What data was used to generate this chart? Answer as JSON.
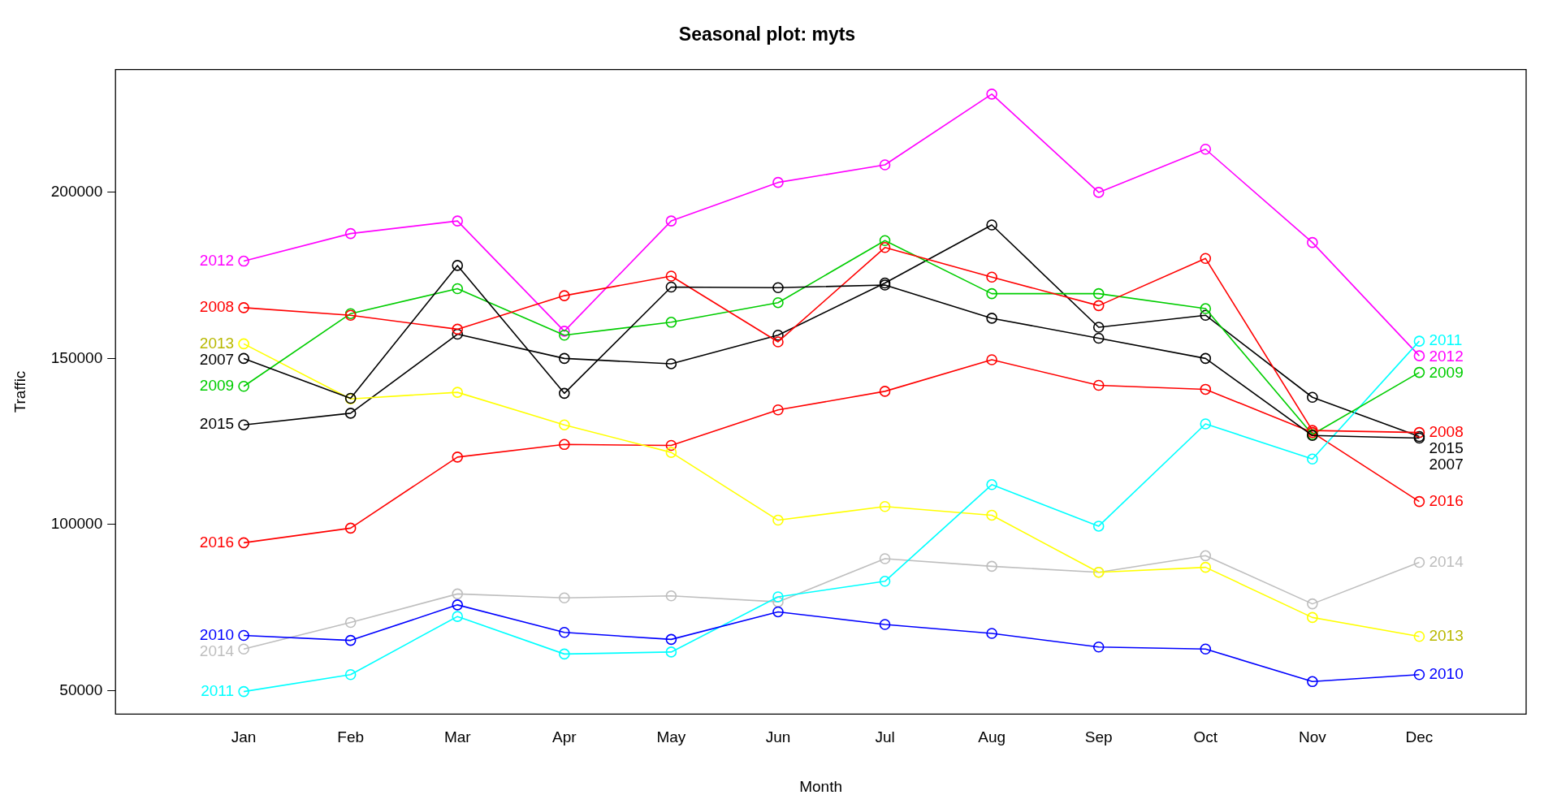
{
  "chart_data": {
    "type": "line",
    "title": "Seasonal plot: myts",
    "xlabel": "Month",
    "ylabel": "Traffic",
    "categories": [
      "Jan",
      "Feb",
      "Mar",
      "Apr",
      "May",
      "Jun",
      "Jul",
      "Aug",
      "Sep",
      "Oct",
      "Nov",
      "Dec"
    ],
    "ylim": [
      42900,
      237000
    ],
    "yticks": [
      50000,
      100000,
      150000,
      200000
    ],
    "grid": false,
    "legend": false,
    "marker": "circle",
    "line_style": "solid",
    "series": [
      {
        "name": "2007",
        "color": "#000000",
        "values": [
          150000,
          138000,
          178000,
          139500,
          171500,
          171300,
          172100,
          162100,
          156100,
          150000,
          126800,
          126000
        ]
      },
      {
        "name": "2008",
        "color": "#ff0000",
        "values": [
          165300,
          163000,
          158800,
          168900,
          174800,
          155000,
          183400,
          174500,
          165900,
          180100,
          128300,
          127700
        ]
      },
      {
        "name": "2009",
        "color": "#00cd00",
        "values": [
          141600,
          163500,
          171000,
          157000,
          160900,
          166800,
          185500,
          169500,
          169500,
          165000,
          127100,
          145800
        ]
      },
      {
        "name": "2010",
        "color": "#0000ff",
        "values": [
          66600,
          65100,
          75800,
          67500,
          65400,
          73700,
          69900,
          67200,
          63100,
          62500,
          52700,
          54800
        ]
      },
      {
        "name": "2011",
        "color": "#00ffff",
        "values": [
          49700,
          54800,
          72300,
          61000,
          61600,
          78200,
          82900,
          112000,
          99500,
          130300,
          119700,
          155200
        ]
      },
      {
        "name": "2012",
        "color": "#ff00ff",
        "values": [
          179300,
          187600,
          191400,
          158200,
          191400,
          203000,
          208300,
          229600,
          200000,
          213000,
          184900,
          150800
        ]
      },
      {
        "name": "2013",
        "color": "#ffff00",
        "values": [
          154400,
          137800,
          139800,
          130000,
          121700,
          101300,
          105400,
          102800,
          85600,
          87100,
          72000,
          66300
        ]
      },
      {
        "name": "2014",
        "color": "#bebebe",
        "values": [
          62500,
          70500,
          79100,
          77900,
          78500,
          76700,
          89700,
          87400,
          85600,
          90600,
          76100,
          88600
        ]
      },
      {
        "name": "2015",
        "color": "#000000",
        "values": [
          130000,
          133500,
          157300,
          150000,
          148400,
          157000,
          172700,
          190200,
          159400,
          163000,
          138300,
          126500
        ]
      },
      {
        "name": "2016",
        "color": "#ff0000",
        "values": [
          94500,
          98900,
          120300,
          124100,
          123800,
          134500,
          140100,
          149600,
          141900,
          140700,
          127700,
          106900
        ]
      }
    ]
  }
}
